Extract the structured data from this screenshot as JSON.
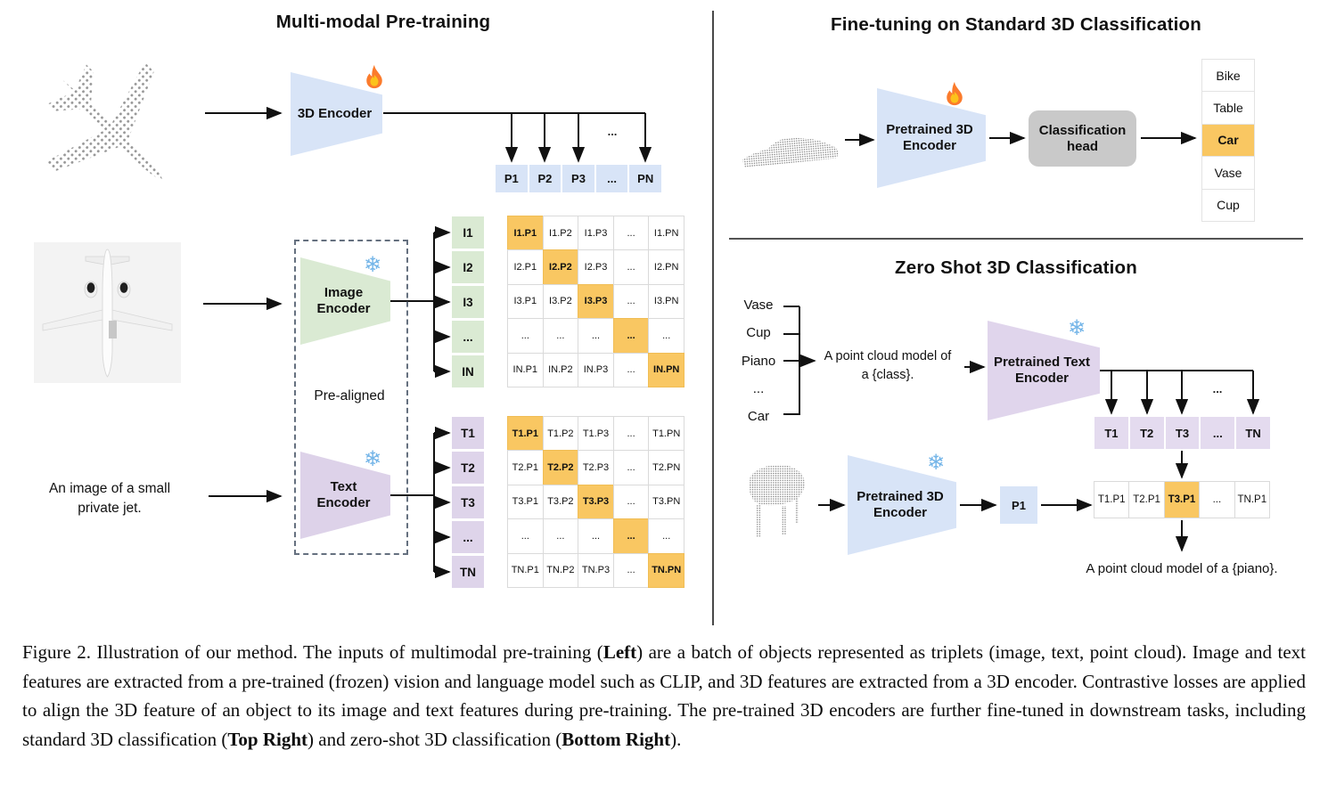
{
  "figure": {
    "colors": {
      "encoder_blue": "#d8e4f7",
      "encoder_green": "#daead3",
      "encoder_purple": "#ddd2e9",
      "highlight_orange": "#f9c762",
      "head_gray": "#c9c9c9"
    },
    "icons": {
      "trainable_icon": "fire-icon",
      "frozen_icon": "snowflake-icon",
      "snowflake_glyph": "❄"
    },
    "left": {
      "title": "Multi-modal Pre-training",
      "encoder_3d_label": "3D Encoder",
      "image_encoder_label": "Image\nEncoder",
      "text_encoder_label": "Text\nEncoder",
      "pre_aligned": "Pre-aligned",
      "input_caption": "An image of a small\nprivate jet.",
      "p_ellipsis": "...",
      "p_row": [
        "P1",
        "P2",
        "P3",
        "...",
        "PN"
      ],
      "i_labels": [
        "I1",
        "I2",
        "I3",
        "...",
        "IN"
      ],
      "t_labels": [
        "T1",
        "T2",
        "T3",
        "...",
        "TN"
      ],
      "i_matrix": [
        [
          "I1.P1",
          "I1.P2",
          "I1.P3",
          "...",
          "I1.PN"
        ],
        [
          "I2.P1",
          "I2.P2",
          "I2.P3",
          "...",
          "I2.PN"
        ],
        [
          "I3.P1",
          "I3.P2",
          "I3.P3",
          "...",
          "I3.PN"
        ],
        [
          "...",
          "...",
          "...",
          "...",
          "..."
        ],
        [
          "IN.P1",
          "IN.P2",
          "IN.P3",
          "...",
          "IN.PN"
        ]
      ],
      "t_matrix": [
        [
          "T1.P1",
          "T1.P2",
          "T1.P3",
          "...",
          "T1.PN"
        ],
        [
          "T2.P1",
          "T2.P2",
          "T2.P3",
          "...",
          "T2.PN"
        ],
        [
          "T3.P1",
          "T3.P2",
          "T3.P3",
          "...",
          "T3.PN"
        ],
        [
          "...",
          "...",
          "...",
          "...",
          "..."
        ],
        [
          "TN.P1",
          "TN.P2",
          "TN.P3",
          "...",
          "TN.PN"
        ]
      ]
    },
    "top_right": {
      "title": "Fine-tuning on Standard 3D Classification",
      "encoder_label": "Pretrained 3D\nEncoder",
      "head_label": "Classification\nhead",
      "classes": [
        "Bike",
        "Table",
        "Car",
        "Vase",
        "Cup"
      ],
      "highlighted_class_index": 2
    },
    "bottom_right": {
      "title": "Zero Shot 3D Classification",
      "prompt_classes": [
        "Vase",
        "Cup",
        "Piano",
        "...",
        "Car"
      ],
      "prompt_text": "A point cloud model of\na {class}.",
      "text_encoder_label": "Pretrained Text\nEncoder",
      "encoder_label": "Pretrained 3D\nEncoder",
      "t_row": [
        "T1",
        "T2",
        "T3",
        "...",
        "TN"
      ],
      "branch_ellipsis": "...",
      "p1_label": "P1",
      "result_row": [
        "T1.P1",
        "T2.P1",
        "T3.P1",
        "...",
        "TN.P1"
      ],
      "result_highlight_index": 2,
      "result_caption": "A point cloud model of a {piano}."
    }
  },
  "caption": {
    "segments": [
      {
        "text": "Figure 2. Illustration of our method. The inputs of multimodal pre-training (",
        "bold": false
      },
      {
        "text": "Left",
        "bold": true
      },
      {
        "text": ") are a batch of objects represented as triplets (image, text, point cloud). Image and text features are extracted from a pre-trained (frozen) vision and language model such as CLIP, and 3D features are extracted from a 3D encoder. Contrastive losses are applied to align the 3D feature of an object to its image and text features during pre-training. The pre-trained 3D encoders are further fine-tuned in downstream tasks, including standard 3D classification (",
        "bold": false
      },
      {
        "text": "Top Right",
        "bold": true
      },
      {
        "text": ") and zero-shot 3D classification (",
        "bold": false
      },
      {
        "text": "Bottom Right",
        "bold": true
      },
      {
        "text": ").",
        "bold": false
      }
    ]
  }
}
